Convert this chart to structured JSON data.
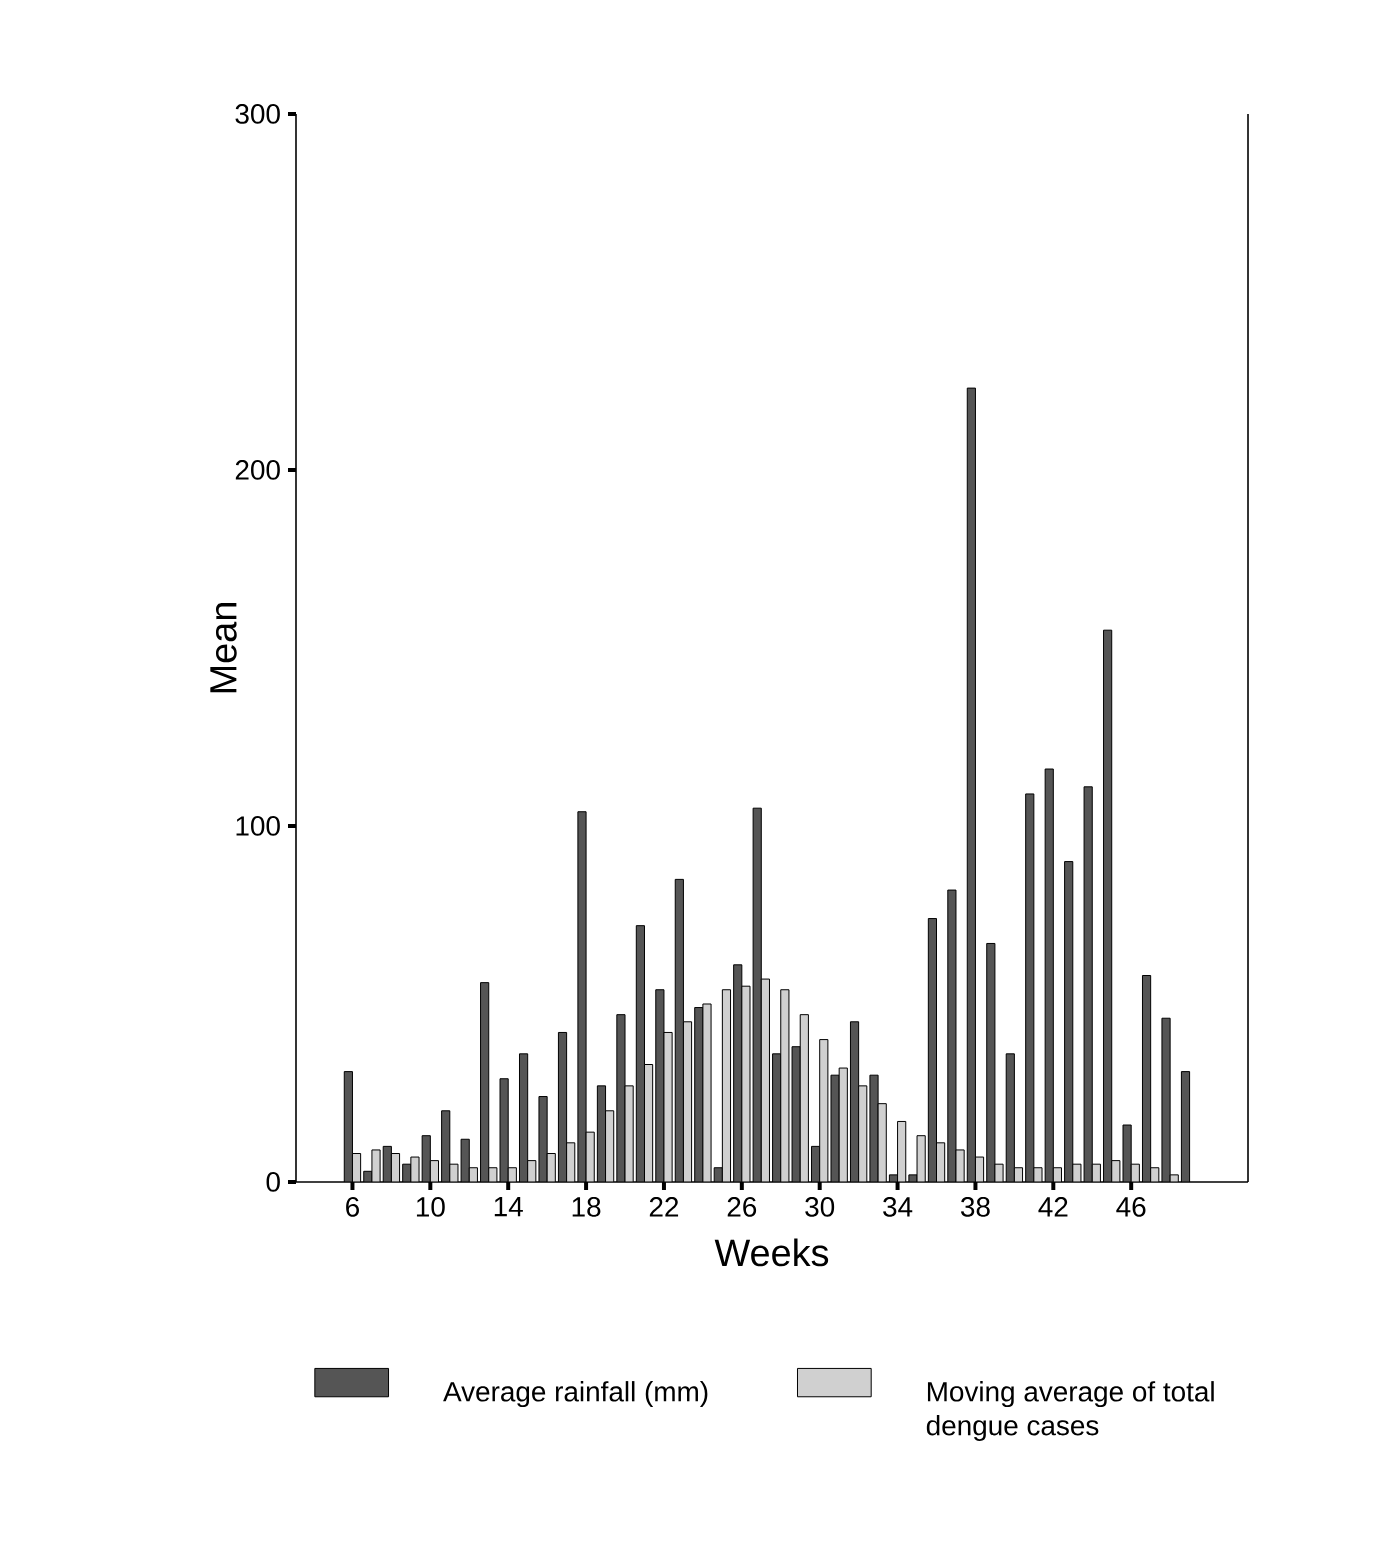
{
  "chart_data": {
    "type": "bar",
    "xlabel": "Weeks",
    "ylabel": "Mean",
    "x": [
      6,
      7,
      8,
      9,
      10,
      11,
      12,
      13,
      14,
      15,
      16,
      17,
      18,
      19,
      20,
      21,
      22,
      23,
      24,
      25,
      26,
      27,
      28,
      29,
      30,
      31,
      32,
      33,
      34,
      35,
      36,
      37,
      38,
      39,
      40,
      41,
      42,
      43,
      44,
      45,
      46,
      47,
      48,
      49
    ],
    "xlim": [
      3.1,
      52
    ],
    "xticks": [
      6,
      10,
      14,
      18,
      22,
      26,
      30,
      34,
      38,
      42,
      46
    ],
    "ylim": [
      0,
      300
    ],
    "yticks": [
      0,
      100,
      200,
      300
    ],
    "legend": "bottom",
    "series": [
      {
        "name": "Average rainfall (mm)",
        "color": "#555555",
        "values": [
          31,
          3,
          10,
          5,
          13,
          20,
          12,
          56,
          29,
          36,
          24,
          42,
          104,
          27,
          47,
          72,
          54,
          85,
          49,
          4,
          61,
          105,
          36,
          38,
          10,
          30,
          45,
          30,
          2,
          2,
          74,
          82,
          223,
          67,
          36,
          109,
          116,
          90,
          111,
          155,
          16,
          58,
          46,
          31
        ]
      },
      {
        "name": "Moving average of total dengue cases",
        "color": "#d0d0d0",
        "values": [
          8,
          9,
          8,
          7,
          6,
          5,
          4,
          4,
          4,
          6,
          8,
          11,
          14,
          20,
          27,
          33,
          42,
          45,
          50,
          54,
          55,
          57,
          54,
          47,
          40,
          32,
          27,
          22,
          17,
          13,
          11,
          9,
          7,
          5,
          4,
          4,
          4,
          5,
          5,
          6,
          5,
          4,
          2,
          null
        ]
      }
    ]
  }
}
